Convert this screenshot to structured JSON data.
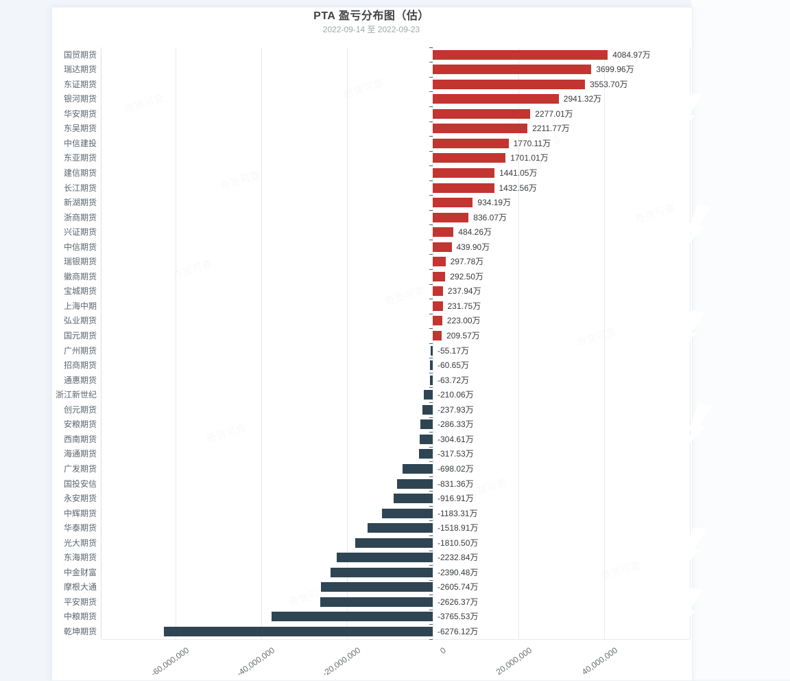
{
  "title": "PTA 盈亏分布图（估）",
  "subtitle": "2022-09-14 至 2022-09-23",
  "colors": {
    "positive": "#c23531",
    "negative": "#2f4554",
    "gridline": "#e7eaed",
    "axis_tick": "#555a5f",
    "category_label": "#5c666e",
    "value_label": "#37393c"
  },
  "chart_data": {
    "type": "bar",
    "orientation": "horizontal",
    "unit": "万",
    "value_suffix": "万",
    "categories": [
      "国贸期货",
      "瑞达期货",
      "东证期货",
      "银河期货",
      "华安期货",
      "东吴期货",
      "中信建投",
      "东亚期货",
      "建信期货",
      "长江期货",
      "新湖期货",
      "浙商期货",
      "兴证期货",
      "中信期货",
      "瑞银期货",
      "徽商期货",
      "宝城期货",
      "上海中期",
      "弘业期货",
      "国元期货",
      "广州期货",
      "招商期货",
      "通惠期货",
      "浙江新世纪",
      "创元期货",
      "安粮期货",
      "西南期货",
      "海通期货",
      "广发期货",
      "国投安信",
      "永安期货",
      "中辉期货",
      "华泰期货",
      "光大期货",
      "东海期货",
      "中金财富",
      "摩根大通",
      "平安期货",
      "中粮期货",
      "乾坤期货"
    ],
    "values": [
      4084.97,
      3699.96,
      3553.7,
      2941.32,
      2277.01,
      2211.77,
      1770.11,
      1701.01,
      1441.05,
      1432.56,
      934.19,
      836.07,
      484.26,
      439.9,
      297.78,
      292.5,
      237.94,
      231.75,
      223.0,
      209.57,
      -55.17,
      -60.65,
      -63.72,
      -210.06,
      -237.93,
      -286.33,
      -304.61,
      -317.53,
      -698.02,
      -831.36,
      -916.91,
      -1183.31,
      -1518.91,
      -1810.5,
      -2232.84,
      -2390.48,
      -2605.74,
      -2626.37,
      -3765.53,
      -6276.12
    ],
    "title": "PTA 盈亏分布图（估）",
    "subtitle": "2022-09-14 至 2022-09-23",
    "xlabel": "",
    "ylabel": "",
    "grid": true,
    "x_axis": {
      "tick_values": [
        -60000000,
        -40000000,
        -20000000,
        0,
        20000000,
        40000000
      ],
      "tick_labels": [
        "-60,000,000",
        "-40,000,000",
        "-20,000,000",
        "0",
        "20,000,000",
        "40,000,000"
      ],
      "gridline_values": [
        -60000000,
        -40000000,
        -20000000,
        0,
        20000000,
        40000000,
        60000000
      ],
      "range": [
        -77000000,
        60000000
      ]
    },
    "watermark_text": "奇货可查"
  }
}
